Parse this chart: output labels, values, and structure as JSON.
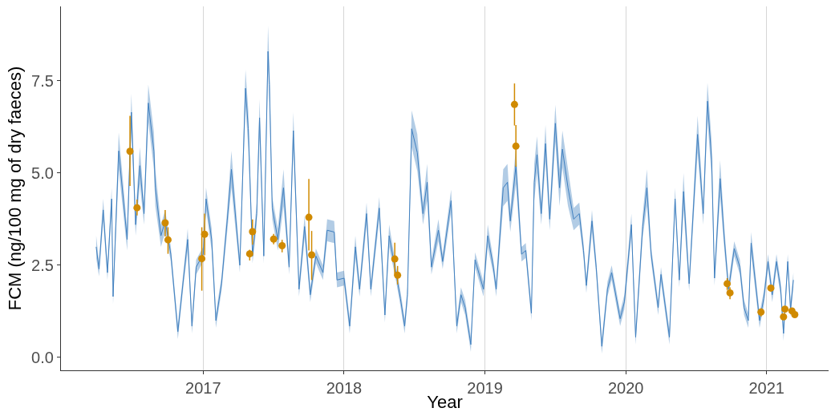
{
  "chart_data": {
    "type": "line",
    "xlabel": "Year",
    "ylabel": "FCM (ng/100 mg of dry faeces)",
    "xlim": [
      2015.99,
      2021.44
    ],
    "xticks": [
      2017,
      2018,
      2019,
      2020,
      2021
    ],
    "ylim": [
      -0.35,
      9.52
    ],
    "yticks": [
      {
        "value": 0,
        "label": "0.0"
      },
      2.5,
      {
        "value": 5,
        "label": "5.0"
      },
      7.5
    ],
    "grid": "x",
    "series": [
      {
        "type": "line",
        "color": "#3f7fbf",
        "marker": "none",
        "x": [
          2016.24,
          2016.26,
          2016.29,
          2016.32,
          2016.35,
          2016.36,
          2016.4,
          2016.46,
          2016.49,
          2016.52,
          2016.55,
          2016.58,
          2016.61,
          2016.65,
          2016.66,
          2016.7,
          2016.73,
          2016.77,
          2016.82,
          2016.86,
          2016.89,
          2016.92,
          2016.95,
          2017.0,
          2017.02,
          2017.06,
          2017.09,
          2017.13,
          2017.17,
          2017.2,
          2017.26,
          2017.3,
          2017.32,
          2017.35,
          2017.38,
          2017.4,
          2017.43,
          2017.46,
          2017.47,
          2017.49,
          2017.53,
          2017.57,
          2017.61,
          2017.64,
          2017.68,
          2017.72,
          2017.76,
          2017.8,
          2017.85,
          2017.88,
          2017.93,
          2017.95,
          2018.0,
          2018.04,
          2018.08,
          2018.11,
          2018.16,
          2018.19,
          2018.25,
          2018.29,
          2018.32,
          2018.37,
          2018.4,
          2018.43,
          2018.45,
          2018.48,
          2018.52,
          2018.55,
          2018.56,
          2018.59,
          2018.62,
          2018.67,
          2018.7,
          2018.76,
          2018.8,
          2018.83,
          2018.86,
          2018.9,
          2018.93,
          2018.99,
          2019.02,
          2019.06,
          2019.08,
          2019.13,
          2019.16,
          2019.18,
          2019.22,
          2019.26,
          2019.29,
          2019.33,
          2019.35,
          2019.37,
          2019.4,
          2019.43,
          2019.46,
          2019.5,
          2019.53,
          2019.55,
          2019.59,
          2019.63,
          2019.67,
          2019.7,
          2019.72,
          2019.76,
          2019.79,
          2019.83,
          2019.87,
          2019.9,
          2019.96,
          2019.99,
          2020.04,
          2020.07,
          2020.12,
          2020.15,
          2020.18,
          2020.23,
          2020.25,
          2020.31,
          2020.35,
          2020.38,
          2020.41,
          2020.45,
          2020.51,
          2020.55,
          2020.58,
          2020.61,
          2020.63,
          2020.67,
          2020.7,
          2020.73,
          2020.77,
          2020.81,
          2020.84,
          2020.87,
          2020.89,
          2020.95,
          2020.98,
          2021.01,
          2021.04,
          2021.07,
          2021.1,
          2021.12,
          2021.15,
          2021.17,
          2021.19
        ],
        "values": [
          3.0,
          2.4,
          4.0,
          2.3,
          4.3,
          1.65,
          5.6,
          3.2,
          6.65,
          3.6,
          5.2,
          3.9,
          6.9,
          5.6,
          4.6,
          3.3,
          3.7,
          2.8,
          0.7,
          2.15,
          3.2,
          0.85,
          2.45,
          2.8,
          4.3,
          3.2,
          1.0,
          2.0,
          3.7,
          5.1,
          2.5,
          7.3,
          6.2,
          2.75,
          3.9,
          6.5,
          2.75,
          8.3,
          7.4,
          4.05,
          3.2,
          4.6,
          2.45,
          6.15,
          1.85,
          3.55,
          1.7,
          2.75,
          2.3,
          3.45,
          3.4,
          2.1,
          2.15,
          0.85,
          3.0,
          1.85,
          3.9,
          1.85,
          4.05,
          1.15,
          3.3,
          2.25,
          1.6,
          0.85,
          1.7,
          6.2,
          5.55,
          4.3,
          3.9,
          4.75,
          2.45,
          3.45,
          2.6,
          4.25,
          0.85,
          1.7,
          1.35,
          0.35,
          2.65,
          1.85,
          3.3,
          2.45,
          1.85,
          4.6,
          4.75,
          3.7,
          5.2,
          2.8,
          2.9,
          1.2,
          4.75,
          5.5,
          3.9,
          5.8,
          3.75,
          6.35,
          4.6,
          5.65,
          4.6,
          3.75,
          3.9,
          2.9,
          1.95,
          3.7,
          2.45,
          0.3,
          1.85,
          2.3,
          1.05,
          1.5,
          3.6,
          0.55,
          3.55,
          4.6,
          2.8,
          1.35,
          2.25,
          0.55,
          4.3,
          2.1,
          4.5,
          2.0,
          6.05,
          3.9,
          6.95,
          5.35,
          2.15,
          4.85,
          3.2,
          1.85,
          2.95,
          2.45,
          1.35,
          1.0,
          3.1,
          1.0,
          1.6,
          2.6,
          1.7,
          2.6,
          1.85,
          0.65,
          2.6,
          1.3,
          2.1
        ],
        "lower": [
          2.7,
          2.2,
          3.7,
          2.1,
          4.0,
          1.45,
          5.1,
          2.9,
          6.15,
          3.3,
          4.7,
          3.6,
          6.4,
          5.1,
          4.1,
          3.0,
          3.4,
          2.6,
          0.5,
          1.95,
          2.9,
          0.65,
          2.25,
          2.6,
          4.0,
          2.9,
          0.8,
          1.8,
          3.4,
          4.6,
          2.3,
          6.8,
          5.7,
          2.55,
          3.6,
          6.0,
          2.55,
          7.8,
          6.9,
          3.75,
          2.9,
          4.1,
          2.25,
          5.65,
          1.65,
          3.25,
          1.5,
          2.55,
          2.1,
          3.15,
          3.1,
          1.9,
          1.95,
          0.65,
          2.7,
          1.65,
          3.6,
          1.65,
          3.75,
          0.95,
          3.0,
          2.05,
          1.4,
          0.65,
          1.5,
          5.7,
          5.05,
          4.0,
          3.6,
          4.25,
          2.25,
          3.15,
          2.4,
          3.95,
          0.65,
          1.5,
          1.15,
          0.15,
          2.45,
          1.65,
          3.0,
          2.25,
          1.65,
          4.1,
          4.25,
          3.4,
          4.7,
          2.6,
          2.7,
          1.0,
          4.25,
          5.0,
          3.6,
          5.3,
          3.45,
          5.85,
          4.1,
          5.15,
          4.1,
          3.45,
          3.6,
          2.7,
          1.75,
          3.4,
          2.25,
          0.1,
          1.65,
          2.1,
          0.85,
          1.3,
          3.3,
          0.35,
          3.25,
          4.1,
          2.6,
          1.15,
          2.05,
          0.35,
          4.0,
          1.9,
          4.0,
          1.8,
          5.55,
          3.6,
          6.45,
          4.85,
          1.95,
          4.35,
          2.9,
          1.65,
          2.75,
          2.25,
          1.15,
          0.8,
          2.8,
          0.8,
          1.4,
          2.4,
          1.5,
          2.4,
          1.65,
          0.45,
          2.4,
          1.1,
          1.9
        ],
        "upper": [
          3.3,
          2.6,
          4.3,
          2.5,
          4.6,
          1.85,
          6.1,
          3.5,
          7.15,
          3.9,
          5.7,
          4.2,
          7.4,
          6.1,
          5.1,
          3.6,
          4.0,
          3.0,
          0.9,
          2.35,
          3.5,
          1.05,
          2.65,
          3.0,
          4.6,
          3.5,
          1.2,
          2.2,
          4.0,
          5.6,
          2.7,
          7.8,
          6.7,
          2.95,
          4.2,
          7.0,
          2.95,
          9.0,
          7.9,
          4.35,
          3.5,
          5.1,
          2.65,
          6.65,
          2.05,
          3.85,
          1.9,
          2.95,
          2.5,
          3.75,
          3.7,
          2.3,
          2.35,
          1.05,
          3.3,
          2.05,
          4.2,
          2.05,
          4.35,
          1.35,
          3.6,
          2.45,
          1.8,
          1.05,
          1.9,
          6.7,
          6.05,
          4.6,
          4.2,
          5.25,
          2.65,
          3.75,
          2.8,
          4.55,
          1.05,
          1.9,
          1.55,
          0.55,
          2.85,
          2.05,
          3.6,
          2.65,
          2.05,
          5.1,
          5.25,
          4.0,
          5.7,
          3.0,
          3.1,
          1.4,
          5.25,
          6.0,
          4.2,
          6.3,
          4.05,
          6.85,
          5.1,
          6.15,
          5.1,
          4.05,
          4.2,
          3.1,
          2.15,
          4.0,
          2.65,
          0.5,
          2.05,
          2.5,
          1.25,
          1.7,
          3.9,
          0.75,
          3.85,
          5.1,
          3.0,
          1.55,
          2.45,
          0.75,
          4.6,
          2.3,
          5.0,
          2.2,
          6.55,
          4.2,
          7.45,
          5.85,
          2.35,
          5.35,
          3.5,
          2.05,
          3.15,
          2.65,
          1.55,
          1.2,
          3.4,
          1.2,
          1.8,
          2.8,
          1.9,
          2.8,
          2.05,
          0.85,
          2.8,
          1.5,
          2.3
        ]
      },
      {
        "type": "scatter",
        "color": "#d08a00",
        "marker": "circle",
        "x": [
          2016.48,
          2016.53,
          2016.73,
          2016.75,
          2016.99,
          2017.01,
          2017.33,
          2017.35,
          2017.5,
          2017.56,
          2017.75,
          2017.77,
          2018.36,
          2018.38,
          2019.21,
          2019.22,
          2020.72,
          2020.74,
          2020.96,
          2021.03,
          2021.12,
          2021.13,
          2021.18,
          2021.2
        ],
        "values": [
          5.59,
          4.06,
          3.65,
          3.19,
          2.68,
          3.34,
          2.81,
          3.41,
          3.21,
          3.03,
          3.8,
          2.78,
          2.67,
          2.23,
          6.86,
          5.73,
          2.0,
          1.75,
          1.23,
          1.88,
          1.1,
          1.31,
          1.26,
          1.16
        ],
        "errors": [
          [
            4.65,
            6.55
          ],
          [
            3.85,
            4.28
          ],
          [
            3.28,
            4.0
          ],
          [
            2.81,
            3.53
          ],
          [
            1.81,
            3.53
          ],
          [
            2.77,
            3.9
          ],
          [
            2.63,
            2.92
          ],
          [
            3.06,
            3.74
          ],
          [
            3.07,
            3.35
          ],
          [
            2.85,
            3.19
          ],
          [
            2.9,
            4.84
          ],
          [
            2.1,
            3.43
          ],
          [
            2.24,
            3.11
          ],
          [
            1.98,
            2.48
          ],
          [
            6.29,
            7.43
          ],
          [
            5.17,
            6.3
          ],
          [
            1.83,
            2.15
          ],
          [
            1.58,
            1.9
          ],
          [
            1.11,
            1.33
          ],
          [
            1.83,
            1.93
          ],
          [
            1.03,
            1.17
          ],
          [
            1.25,
            1.37
          ],
          [
            1.2,
            1.33
          ],
          [
            1.11,
            1.21
          ]
        ]
      }
    ]
  }
}
